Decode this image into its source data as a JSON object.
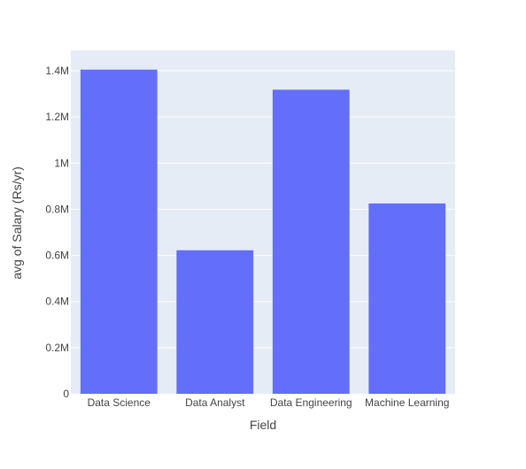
{
  "chart_data": {
    "type": "bar",
    "categories": [
      "Data Science",
      "Data Analyst",
      "Data Engineering",
      "Machine Learning"
    ],
    "values": [
      1405000,
      622000,
      1318000,
      825000
    ],
    "xlabel": "Field",
    "ylabel": "avg of Salary (Rs/yr)",
    "ylim": [
      0,
      1400000
    ],
    "yticks": [
      0,
      200000,
      400000,
      600000,
      800000,
      1000000,
      1200000,
      1400000
    ],
    "ytick_labels": [
      "0",
      "0.2M",
      "0.4M",
      "0.6M",
      "0.8M",
      "1M",
      "1.2M",
      "1.4M"
    ],
    "grid": true,
    "legend": "none",
    "colors": {
      "bar": "#636efa",
      "plot_background": "#e5ecf6",
      "gridline": "#ffffff",
      "text": "#444444"
    }
  }
}
